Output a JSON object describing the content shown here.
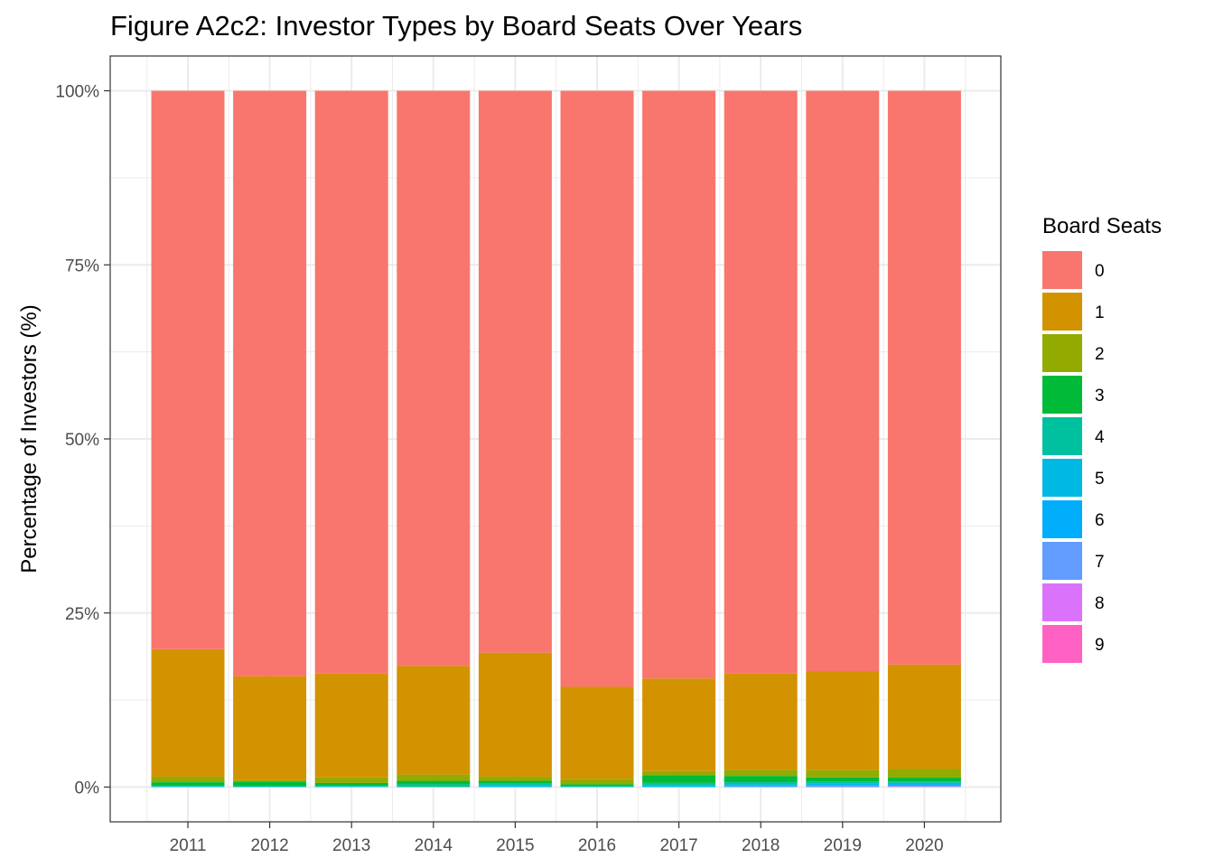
{
  "chart_data": {
    "type": "bar",
    "stacked": true,
    "percent": true,
    "title": "Figure A2c2: Investor Types by Board Seats Over Years",
    "xlabel": "",
    "ylabel": "Percentage of Investors (%)",
    "ylim": [
      0,
      100
    ],
    "yticks": [
      0,
      25,
      50,
      75,
      100
    ],
    "ytick_labels": [
      "0%",
      "25%",
      "50%",
      "75%",
      "100%"
    ],
    "grid": true,
    "legend": {
      "title": "Board Seats",
      "placement": "right"
    },
    "categories": [
      "2011",
      "2012",
      "2013",
      "2014",
      "2015",
      "2016",
      "2017",
      "2018",
      "2019",
      "2020"
    ],
    "series": [
      {
        "name": "0",
        "color": "#F8766D",
        "values": [
          80.2,
          84.1,
          83.7,
          82.6,
          80.7,
          85.6,
          84.4,
          83.7,
          83.4,
          82.4
        ]
      },
      {
        "name": "1",
        "color": "#D39200",
        "values": [
          18.3,
          14.9,
          14.9,
          15.6,
          17.8,
          13.2,
          13.3,
          13.8,
          14.1,
          15.0
        ]
      },
      {
        "name": "2",
        "color": "#93AA00",
        "values": [
          0.8,
          0.2,
          0.8,
          0.9,
          0.6,
          0.8,
          0.6,
          0.9,
          1.1,
          1.2
        ]
      },
      {
        "name": "3",
        "color": "#00BA38",
        "values": [
          0.5,
          0.6,
          0.4,
          0.5,
          0.4,
          0.2,
          1.1,
          0.9,
          0.6,
          0.6
        ]
      },
      {
        "name": "4",
        "color": "#00C19F",
        "values": [
          0.1,
          0.2,
          0.1,
          0.4,
          0.2,
          0.2,
          0.3,
          0.3,
          0.3,
          0.2
        ]
      },
      {
        "name": "5",
        "color": "#00B9E3",
        "values": [
          0.1,
          0.0,
          0.1,
          0.0,
          0.3,
          0.0,
          0.3,
          0.1,
          0.2,
          0.2
        ]
      },
      {
        "name": "6",
        "color": "#00ADFA",
        "values": [
          0.0,
          0.0,
          0.0,
          0.0,
          0.0,
          0.0,
          0.0,
          0.2,
          0.1,
          0.2
        ]
      },
      {
        "name": "7",
        "color": "#619CFF",
        "values": [
          0.0,
          0.0,
          0.0,
          0.0,
          0.0,
          0.0,
          0.0,
          0.1,
          0.2,
          0.1
        ]
      },
      {
        "name": "8",
        "color": "#DB72FB",
        "values": [
          0.0,
          0.0,
          0.0,
          0.0,
          0.0,
          0.0,
          0.0,
          0.0,
          0.0,
          0.1
        ]
      },
      {
        "name": "9",
        "color": "#FF61C3",
        "values": [
          0.0,
          0.0,
          0.0,
          0.0,
          0.0,
          0.0,
          0.0,
          0.0,
          0.0,
          0.0
        ]
      }
    ]
  }
}
